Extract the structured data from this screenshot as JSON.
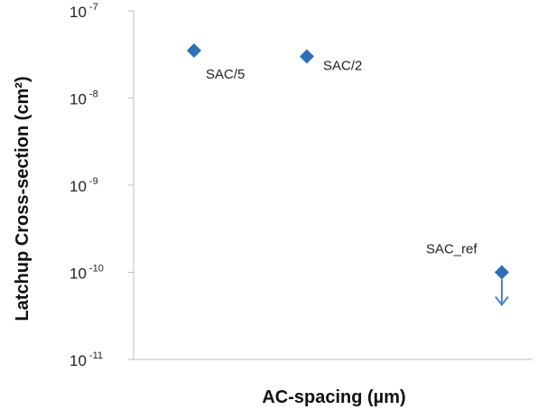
{
  "chart_data": {
    "type": "scatter",
    "xlabel": "AC-spacing (µm)",
    "ylabel": "Latchup Cross-section (cm²)",
    "yscale": "log",
    "ylim": [
      1e-11,
      1e-07
    ],
    "y_ticks": [
      {
        "base": "10",
        "exp": "-7"
      },
      {
        "base": "10",
        "exp": "-8"
      },
      {
        "base": "10",
        "exp": "-9"
      },
      {
        "base": "10",
        "exp": "-10"
      },
      {
        "base": "10",
        "exp": "-11"
      }
    ],
    "grid": false,
    "x_ticks_shown": false,
    "marker": "diamond",
    "marker_color": "#2f6fb8",
    "arrow_color": "#4a86c8",
    "points": [
      {
        "label": "SAC/5",
        "y": 3.5e-08,
        "upper_limit": false
      },
      {
        "label": "SAC/2",
        "y": 3e-08,
        "upper_limit": false
      },
      {
        "label": "SAC_ref",
        "y": 1e-10,
        "upper_limit": true
      }
    ]
  }
}
